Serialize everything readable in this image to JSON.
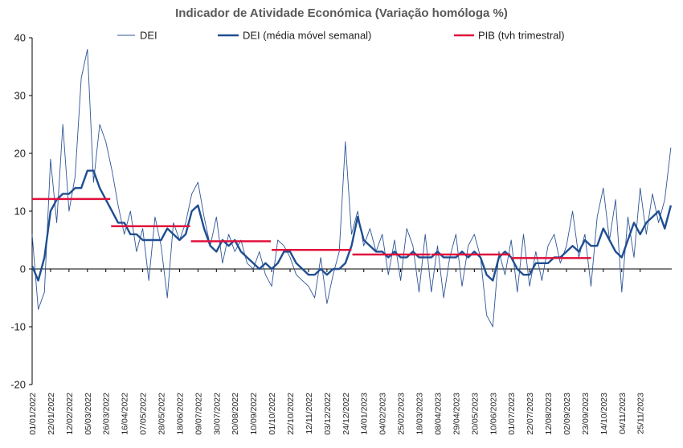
{
  "chart_data": {
    "type": "line",
    "title": "Indicador de Atividade Económica (Variação homóloga %)",
    "xlabel": "",
    "ylabel": "",
    "ylim": [
      -20,
      40
    ],
    "yticks": [
      -20,
      -10,
      0,
      10,
      20,
      30,
      40
    ],
    "x_range": [
      "2022-01-01",
      "2023-12-31"
    ],
    "x_tick_labels": [
      "01/01/2022",
      "22/01/2022",
      "12/02/2022",
      "05/03/2022",
      "26/03/2022",
      "16/04/2022",
      "07/05/2022",
      "28/05/2022",
      "18/06/2022",
      "09/07/2022",
      "30/07/2022",
      "20/08/2022",
      "10/09/2022",
      "01/10/2022",
      "22/10/2022",
      "12/11/2022",
      "03/12/2022",
      "24/12/2022",
      "14/01/2023",
      "04/02/2023",
      "25/02/2023",
      "18/03/2023",
      "08/04/2023",
      "29/04/2023",
      "20/05/2023",
      "10/06/2023",
      "01/07/2023",
      "22/07/2023",
      "12/08/2023",
      "02/09/2023",
      "23/09/2023",
      "14/10/2023",
      "04/11/2023",
      "25/11/2023"
    ],
    "legend_position": "top",
    "grid": false,
    "series": [
      {
        "name": "DEI",
        "style": "thin-line",
        "color": "#2f5597",
        "x": [
          "2022-01-01",
          "2022-01-08",
          "2022-01-15",
          "2022-01-22",
          "2022-01-29",
          "2022-02-05",
          "2022-02-12",
          "2022-02-19",
          "2022-02-26",
          "2022-03-05",
          "2022-03-12",
          "2022-03-19",
          "2022-03-26",
          "2022-04-02",
          "2022-04-09",
          "2022-04-16",
          "2022-04-23",
          "2022-04-30",
          "2022-05-07",
          "2022-05-14",
          "2022-05-21",
          "2022-05-28",
          "2022-06-04",
          "2022-06-11",
          "2022-06-18",
          "2022-06-25",
          "2022-07-02",
          "2022-07-09",
          "2022-07-16",
          "2022-07-23",
          "2022-07-30",
          "2022-08-06",
          "2022-08-13",
          "2022-08-20",
          "2022-08-27",
          "2022-09-03",
          "2022-09-10",
          "2022-09-17",
          "2022-09-24",
          "2022-10-01",
          "2022-10-08",
          "2022-10-15",
          "2022-10-22",
          "2022-10-29",
          "2022-11-05",
          "2022-11-12",
          "2022-11-19",
          "2022-11-26",
          "2022-12-03",
          "2022-12-10",
          "2022-12-17",
          "2022-12-24",
          "2022-12-31",
          "2023-01-07",
          "2023-01-14",
          "2023-01-21",
          "2023-01-28",
          "2023-02-04",
          "2023-02-11",
          "2023-02-18",
          "2023-02-25",
          "2023-03-04",
          "2023-03-11",
          "2023-03-18",
          "2023-03-25",
          "2023-04-01",
          "2023-04-08",
          "2023-04-15",
          "2023-04-22",
          "2023-04-29",
          "2023-05-06",
          "2023-05-13",
          "2023-05-20",
          "2023-05-27",
          "2023-06-03",
          "2023-06-10",
          "2023-06-17",
          "2023-06-24",
          "2023-07-01",
          "2023-07-08",
          "2023-07-15",
          "2023-07-22",
          "2023-07-29",
          "2023-08-05",
          "2023-08-12",
          "2023-08-19",
          "2023-08-26",
          "2023-09-02",
          "2023-09-09",
          "2023-09-16",
          "2023-09-23",
          "2023-09-30",
          "2023-10-07",
          "2023-10-14",
          "2023-10-21",
          "2023-10-28",
          "2023-11-04",
          "2023-11-11",
          "2023-11-18",
          "2023-11-25",
          "2023-12-02",
          "2023-12-09",
          "2023-12-16",
          "2023-12-23",
          "2023-12-30"
        ],
        "values": [
          6,
          -7,
          -4,
          19,
          8,
          25,
          10,
          16,
          33,
          38,
          15,
          25,
          22,
          17,
          11,
          6,
          10,
          3,
          7,
          -2,
          9,
          4,
          -5,
          8,
          5,
          8,
          13,
          15,
          9,
          4,
          9,
          1,
          6,
          3,
          5,
          1,
          0,
          3,
          -1,
          -3,
          5,
          4,
          2,
          -1,
          -2,
          -3,
          -5,
          2,
          -6,
          -1,
          3,
          22,
          6,
          10,
          4,
          7,
          3,
          6,
          -1,
          5,
          -2,
          7,
          4,
          -4,
          6,
          -4,
          4,
          -5,
          2,
          6,
          -3,
          4,
          6,
          2,
          -8,
          -10,
          3,
          -1,
          5,
          -4,
          6,
          -3,
          3,
          -2,
          4,
          6,
          1,
          4,
          10,
          2,
          6,
          -3,
          9,
          14,
          5,
          12,
          -4,
          9,
          2,
          14,
          6,
          13,
          8,
          12,
          21
        ]
      },
      {
        "name": "DEI (média móvel semanal)",
        "style": "thick-line",
        "color": "#1f4e91",
        "x": [
          "2022-01-01",
          "2022-01-08",
          "2022-01-15",
          "2022-01-22",
          "2022-01-29",
          "2022-02-05",
          "2022-02-12",
          "2022-02-19",
          "2022-02-26",
          "2022-03-05",
          "2022-03-12",
          "2022-03-19",
          "2022-03-26",
          "2022-04-02",
          "2022-04-09",
          "2022-04-16",
          "2022-04-23",
          "2022-04-30",
          "2022-05-07",
          "2022-05-14",
          "2022-05-21",
          "2022-05-28",
          "2022-06-04",
          "2022-06-11",
          "2022-06-18",
          "2022-06-25",
          "2022-07-02",
          "2022-07-09",
          "2022-07-16",
          "2022-07-23",
          "2022-07-30",
          "2022-08-06",
          "2022-08-13",
          "2022-08-20",
          "2022-08-27",
          "2022-09-03",
          "2022-09-10",
          "2022-09-17",
          "2022-09-24",
          "2022-10-01",
          "2022-10-08",
          "2022-10-15",
          "2022-10-22",
          "2022-10-29",
          "2022-11-05",
          "2022-11-12",
          "2022-11-19",
          "2022-11-26",
          "2022-12-03",
          "2022-12-10",
          "2022-12-17",
          "2022-12-24",
          "2022-12-31",
          "2023-01-07",
          "2023-01-14",
          "2023-01-21",
          "2023-01-28",
          "2023-02-04",
          "2023-02-11",
          "2023-02-18",
          "2023-02-25",
          "2023-03-04",
          "2023-03-11",
          "2023-03-18",
          "2023-03-25",
          "2023-04-01",
          "2023-04-08",
          "2023-04-15",
          "2023-04-22",
          "2023-04-29",
          "2023-05-06",
          "2023-05-13",
          "2023-05-20",
          "2023-05-27",
          "2023-06-03",
          "2023-06-10",
          "2023-06-17",
          "2023-06-24",
          "2023-07-01",
          "2023-07-08",
          "2023-07-15",
          "2023-07-22",
          "2023-07-29",
          "2023-08-05",
          "2023-08-12",
          "2023-08-19",
          "2023-08-26",
          "2023-09-02",
          "2023-09-09",
          "2023-09-16",
          "2023-09-23",
          "2023-09-30",
          "2023-10-07",
          "2023-10-14",
          "2023-10-21",
          "2023-10-28",
          "2023-11-04",
          "2023-11-11",
          "2023-11-18",
          "2023-11-25",
          "2023-12-02",
          "2023-12-09",
          "2023-12-16",
          "2023-12-23",
          "2023-12-30"
        ],
        "values": [
          0.5,
          -2,
          2,
          10,
          12,
          13,
          13,
          14,
          14,
          17,
          17,
          14,
          12,
          10,
          8,
          8,
          6,
          6,
          5,
          5,
          5,
          5,
          7,
          6,
          5,
          6,
          10,
          11,
          7,
          4,
          3,
          5,
          4,
          5,
          3,
          2,
          1,
          0,
          1,
          0,
          1,
          3,
          3,
          1,
          0,
          -1,
          -1,
          0,
          -1,
          0,
          0,
          1,
          4,
          9,
          5,
          4,
          3,
          3,
          2,
          3,
          2,
          2,
          3,
          2,
          2,
          2,
          3,
          2,
          2,
          2,
          3,
          2,
          3,
          2,
          -1,
          -2,
          2,
          3,
          2,
          0,
          -1,
          -1,
          1,
          1,
          1,
          2,
          2,
          3,
          4,
          3,
          5,
          4,
          4,
          7,
          5,
          3,
          2,
          5,
          8,
          6,
          8,
          9,
          10,
          7,
          11
        ]
      },
      {
        "name": "PIB (tvh trimestral)",
        "style": "step",
        "color": "#e0103c",
        "segments": [
          {
            "start": "2022-01-01",
            "end": "2022-03-31",
            "value": 12.1
          },
          {
            "start": "2022-04-01",
            "end": "2022-06-30",
            "value": 7.4
          },
          {
            "start": "2022-07-01",
            "end": "2022-09-30",
            "value": 4.8
          },
          {
            "start": "2022-10-01",
            "end": "2022-12-31",
            "value": 3.3
          },
          {
            "start": "2023-01-01",
            "end": "2023-03-31",
            "value": 2.5
          },
          {
            "start": "2023-04-01",
            "end": "2023-06-30",
            "value": 2.5
          },
          {
            "start": "2023-07-01",
            "end": "2023-09-30",
            "value": 1.9
          }
        ]
      }
    ]
  }
}
